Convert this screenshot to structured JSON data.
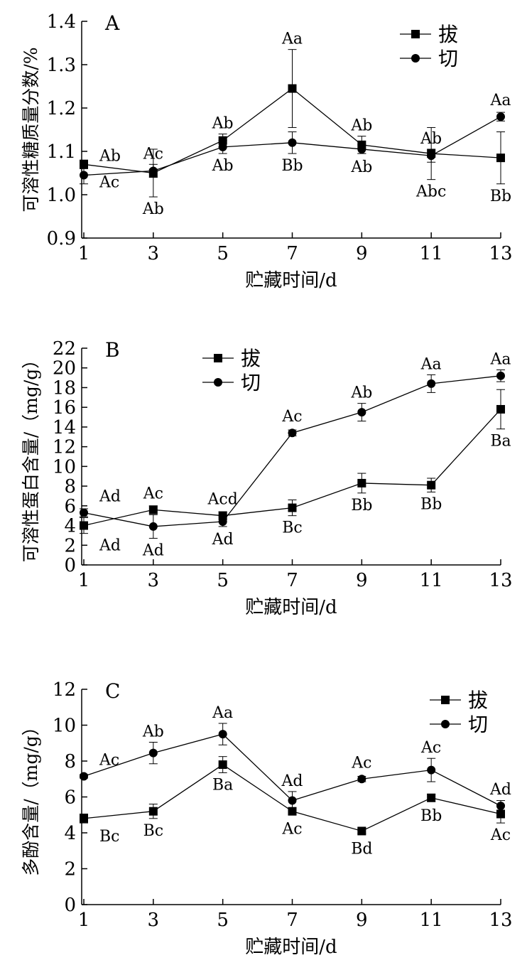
{
  "chart_data": [
    {
      "type": "line",
      "panel_label": "A",
      "xlabel": "贮藏时间/d",
      "ylabel": "可溶性糖质量分数/%",
      "x": [
        1,
        3,
        5,
        7,
        9,
        11,
        13
      ],
      "xticks": [
        "1",
        "3",
        "5",
        "7",
        "9",
        "11",
        "13"
      ],
      "ylim": [
        0.9,
        1.4
      ],
      "yticks": [
        0.9,
        1.0,
        1.1,
        1.2,
        1.3,
        1.4
      ],
      "ytick_labels": [
        "0.9",
        "1.0",
        "1.1",
        "1.2",
        "1.3",
        "1.4"
      ],
      "legend_position": "top-right",
      "series": [
        {
          "name": "拔",
          "marker": "square",
          "values": [
            1.07,
            1.05,
            1.125,
            1.245,
            1.115,
            1.095,
            1.085
          ],
          "errors": [
            0.01,
            0.055,
            0.015,
            0.09,
            0.02,
            0.06,
            0.06
          ],
          "labels": [
            "Ac",
            "Ab",
            "Ab",
            "Aa",
            "Ab",
            "Abc",
            "Bb"
          ]
        },
        {
          "name": "切",
          "marker": "circle",
          "values": [
            1.045,
            1.055,
            1.11,
            1.12,
            1.105,
            1.09,
            1.18
          ],
          "errors": [
            0.02,
            0.015,
            0.015,
            0.025,
            0.01,
            0.015,
            0.01
          ],
          "labels": [
            "Ab",
            "Ac",
            "Ab",
            "Bb",
            "Ab",
            "Ab",
            "Aa"
          ]
        }
      ]
    },
    {
      "type": "line",
      "panel_label": "B",
      "xlabel": "贮藏时间/d",
      "ylabel": "可溶性蛋白含量/（mg/g）",
      "x": [
        1,
        3,
        5,
        7,
        9,
        11,
        13
      ],
      "xticks": [
        "1",
        "3",
        "5",
        "7",
        "9",
        "11",
        "13"
      ],
      "ylim": [
        0,
        22
      ],
      "yticks": [
        0,
        2,
        4,
        6,
        8,
        10,
        12,
        14,
        16,
        18,
        20,
        22
      ],
      "ytick_labels": [
        "0",
        "2",
        "4",
        "6",
        "8",
        "10",
        "12",
        "14",
        "16",
        "18",
        "20",
        "22"
      ],
      "legend_position": "top-left",
      "series": [
        {
          "name": "拔",
          "marker": "square",
          "values": [
            4.0,
            5.6,
            5.0,
            5.8,
            8.3,
            8.1,
            15.8
          ],
          "errors": [
            0.8,
            0.4,
            0.4,
            0.8,
            1.0,
            0.7,
            2.0
          ],
          "labels": [
            "Ad",
            "Ac",
            "Acd",
            "Bc",
            "Bb",
            "Bb",
            "Ba"
          ]
        },
        {
          "name": "切",
          "marker": "circle",
          "values": [
            5.3,
            3.9,
            4.4,
            13.4,
            15.5,
            18.4,
            19.2
          ],
          "errors": [
            0.4,
            1.2,
            0.5,
            0.3,
            0.9,
            0.9,
            0.6
          ],
          "labels": [
            "Ad",
            "Ad",
            "Ad",
            "Ac",
            "Ab",
            "Aa",
            "Aa"
          ]
        }
      ]
    },
    {
      "type": "line",
      "panel_label": "C",
      "xlabel": "贮藏时间/d",
      "ylabel": "多酚含量/（mg/g）",
      "x": [
        1,
        3,
        5,
        7,
        9,
        11,
        13
      ],
      "xticks": [
        "1",
        "3",
        "5",
        "7",
        "9",
        "11",
        "13"
      ],
      "ylim": [
        0,
        12
      ],
      "yticks": [
        0,
        2,
        4,
        6,
        8,
        10,
        12
      ],
      "ytick_labels": [
        "0",
        "2",
        "4",
        "6",
        "8",
        "10",
        "12"
      ],
      "legend_position": "top-right",
      "series": [
        {
          "name": "拔",
          "marker": "square",
          "values": [
            4.8,
            5.2,
            7.8,
            5.2,
            4.1,
            5.95,
            5.05
          ],
          "errors": [
            0.25,
            0.4,
            0.45,
            0.2,
            0.15,
            0.2,
            0.5
          ],
          "labels": [
            "Bc",
            "Bc",
            "Ba",
            "Ac",
            "Bd",
            "Bb",
            "Ac"
          ]
        },
        {
          "name": "切",
          "marker": "circle",
          "values": [
            7.15,
            8.45,
            9.5,
            5.8,
            7.0,
            7.5,
            5.5
          ],
          "errors": [
            0.1,
            0.6,
            0.6,
            0.5,
            0.15,
            0.65,
            0.3
          ],
          "labels": [
            "Ac",
            "Ab",
            "Aa",
            "Ad",
            "Ac",
            "Ac",
            "Ad"
          ]
        }
      ]
    }
  ]
}
